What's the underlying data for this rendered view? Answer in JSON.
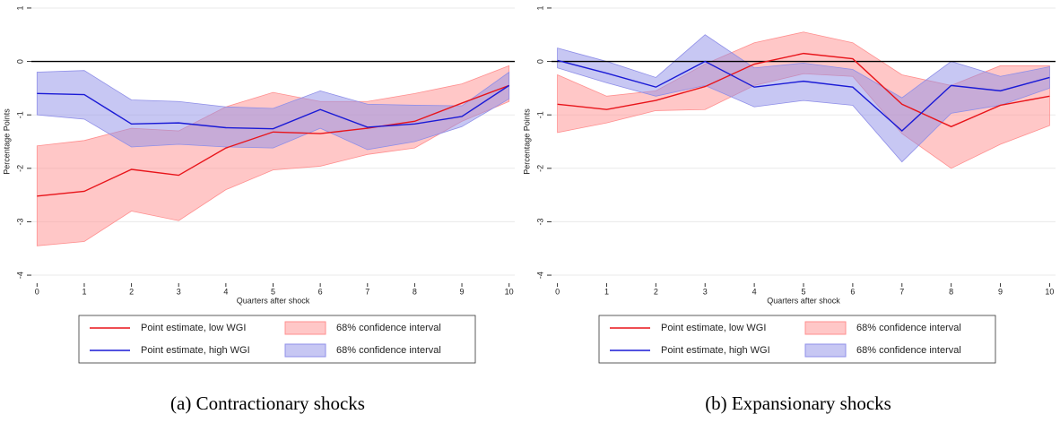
{
  "chart_data": [
    {
      "type": "line",
      "caption": "(a) Contractionary shocks",
      "y_label": "Percentage Points",
      "x_label": "Quarters after shock",
      "x": [
        0,
        1,
        2,
        3,
        4,
        5,
        6,
        7,
        8,
        9,
        10
      ],
      "xlim": [
        -0.12,
        10.12
      ],
      "xticks": [
        0,
        1,
        2,
        3,
        4,
        5,
        6,
        7,
        8,
        9,
        10
      ],
      "ylim": [
        -4.15,
        1.15
      ],
      "yticks": [
        -4,
        -3,
        -2,
        -1,
        0,
        1
      ],
      "grid": true,
      "reference_line": 0,
      "series": [
        {
          "name": "Point estimate, low WGI",
          "type": "line",
          "color": "#e8141a",
          "values": [
            -2.52,
            -2.43,
            -2.02,
            -2.13,
            -1.62,
            -1.32,
            -1.35,
            -1.25,
            -1.12,
            -0.78,
            -0.45
          ]
        },
        {
          "name": "68% confidence interval",
          "type": "band",
          "color": "#ff8f8f",
          "lower": [
            -3.45,
            -3.37,
            -2.8,
            -2.98,
            -2.4,
            -2.03,
            -1.96,
            -1.74,
            -1.62,
            -1.12,
            -0.75
          ],
          "upper": [
            -1.58,
            -1.48,
            -1.25,
            -1.3,
            -0.85,
            -0.58,
            -0.75,
            -0.75,
            -0.6,
            -0.42,
            -0.08
          ]
        },
        {
          "name": "Point estimate, high WGI",
          "type": "line",
          "color": "#1a1ad6",
          "values": [
            -0.6,
            -0.62,
            -1.17,
            -1.15,
            -1.24,
            -1.26,
            -0.9,
            -1.23,
            -1.17,
            -1.03,
            -0.45
          ]
        },
        {
          "name": "68% confidence interval",
          "type": "band",
          "color": "#8f8fe8",
          "lower": [
            -1.0,
            -1.08,
            -1.6,
            -1.55,
            -1.6,
            -1.62,
            -1.25,
            -1.65,
            -1.5,
            -1.22,
            -0.7
          ],
          "upper": [
            -0.2,
            -0.17,
            -0.72,
            -0.75,
            -0.85,
            -0.88,
            -0.55,
            -0.8,
            -0.82,
            -0.83,
            -0.2
          ]
        }
      ]
    },
    {
      "type": "line",
      "caption": "(b) Expansionary shocks",
      "y_label": "Percentage Points",
      "x_label": "Quarters after shock",
      "x": [
        0,
        1,
        2,
        3,
        4,
        5,
        6,
        7,
        8,
        9,
        10
      ],
      "xlim": [
        -0.12,
        10.12
      ],
      "xticks": [
        0,
        1,
        2,
        3,
        4,
        5,
        6,
        7,
        8,
        9,
        10
      ],
      "ylim": [
        -4.15,
        1.15
      ],
      "yticks": [
        -4,
        -3,
        -2,
        -1,
        0,
        1
      ],
      "grid": true,
      "reference_line": 0,
      "series": [
        {
          "name": "Point estimate, low WGI",
          "type": "line",
          "color": "#e8141a",
          "values": [
            -0.8,
            -0.9,
            -0.73,
            -0.47,
            -0.05,
            0.15,
            0.05,
            -0.8,
            -1.22,
            -0.82,
            -0.65
          ]
        },
        {
          "name": "68% confidence interval",
          "type": "band",
          "color": "#ff8f8f",
          "lower": [
            -1.33,
            -1.15,
            -0.92,
            -0.9,
            -0.45,
            -0.23,
            -0.28,
            -1.35,
            -2.0,
            -1.55,
            -1.2
          ],
          "upper": [
            -0.25,
            -0.65,
            -0.55,
            -0.05,
            0.35,
            0.55,
            0.35,
            -0.25,
            -0.45,
            -0.08,
            -0.08
          ]
        },
        {
          "name": "Point estimate, high WGI",
          "type": "line",
          "color": "#1a1ad6",
          "values": [
            0.02,
            -0.22,
            -0.48,
            0.0,
            -0.48,
            -0.37,
            -0.48,
            -1.3,
            -0.45,
            -0.55,
            -0.3
          ]
        },
        {
          "name": "68% confidence interval",
          "type": "band",
          "color": "#8f8fe8",
          "lower": [
            -0.12,
            -0.4,
            -0.65,
            -0.45,
            -0.85,
            -0.73,
            -0.82,
            -1.88,
            -0.97,
            -0.82,
            -0.5
          ],
          "upper": [
            0.25,
            0.0,
            -0.3,
            0.5,
            -0.12,
            -0.03,
            -0.15,
            -0.68,
            0.0,
            -0.28,
            -0.1
          ]
        }
      ]
    }
  ]
}
